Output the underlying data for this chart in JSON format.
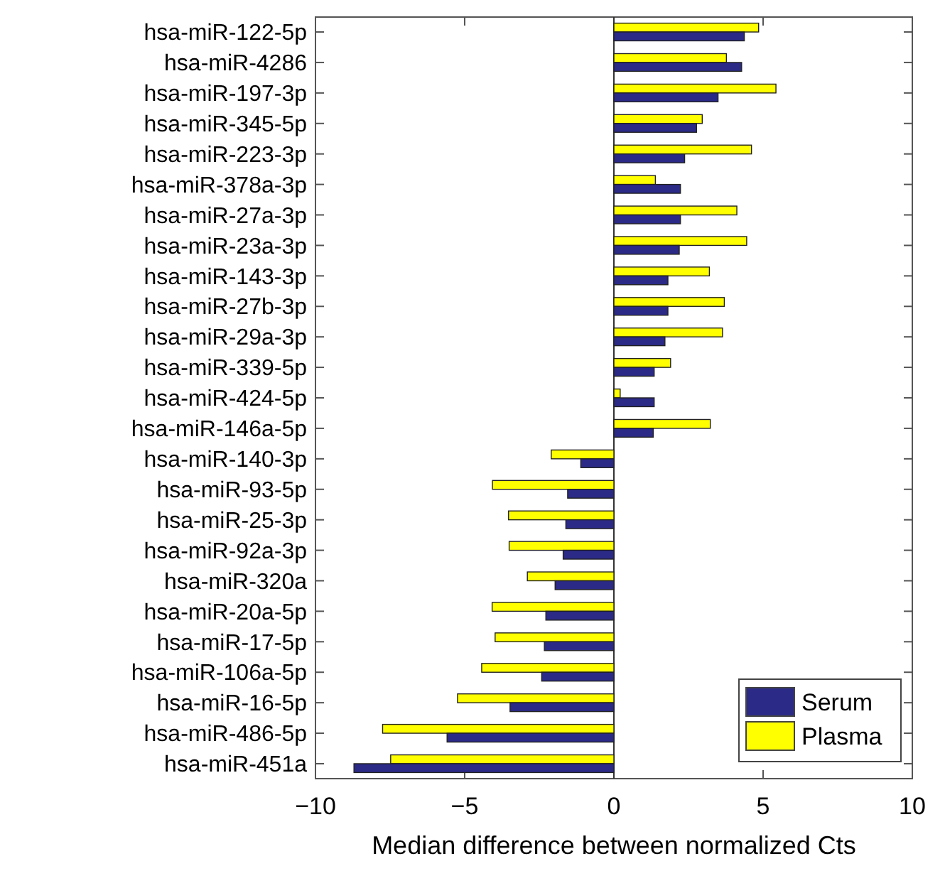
{
  "chart_data": {
    "type": "bar",
    "orientation": "horizontal",
    "xlabel": "Median difference between normalized Cts",
    "categories": [
      "hsa-miR-122-5p",
      "hsa-miR-4286",
      "hsa-miR-197-3p",
      "hsa-miR-345-5p",
      "hsa-miR-223-3p",
      "hsa-miR-378a-3p",
      "hsa-miR-27a-3p",
      "hsa-miR-23a-3p",
      "hsa-miR-143-3p",
      "hsa-miR-27b-3p",
      "hsa-miR-29a-3p",
      "hsa-miR-339-5p",
      "hsa-miR-424-5p",
      "hsa-miR-146a-5p",
      "hsa-miR-140-3p",
      "hsa-miR-93-5p",
      "hsa-miR-25-3p",
      "hsa-miR-92a-3p",
      "hsa-miR-320a",
      "hsa-miR-20a-5p",
      "hsa-miR-17-5p",
      "hsa-miR-106a-5p",
      "hsa-miR-16-5p",
      "hsa-miR-486-5p",
      "hsa-miR-451a"
    ],
    "series": [
      {
        "name": "Serum",
        "color": "#2b2a87",
        "values": [
          4.37,
          4.28,
          3.49,
          2.77,
          2.37,
          2.23,
          2.23,
          2.19,
          1.81,
          1.81,
          1.71,
          1.35,
          1.35,
          1.32,
          -1.11,
          -1.55,
          -1.61,
          -1.7,
          -1.97,
          -2.28,
          -2.33,
          -2.42,
          -3.48,
          -5.59,
          -8.71
        ]
      },
      {
        "name": "Plasma",
        "color": "#ffff00",
        "values": [
          4.85,
          3.77,
          5.43,
          2.96,
          4.61,
          1.39,
          4.12,
          4.45,
          3.2,
          3.7,
          3.64,
          1.9,
          0.21,
          3.23,
          -2.1,
          -4.07,
          -3.53,
          -3.51,
          -2.9,
          -4.08,
          -3.98,
          -4.43,
          -5.24,
          -7.75,
          -7.48
        ]
      }
    ],
    "xlim": [
      -10,
      10
    ],
    "xticks": [
      {
        "value": -10,
        "label": "−10"
      },
      {
        "value": -5,
        "label": "−5"
      },
      0,
      5,
      10
    ],
    "ref_lines": [
      {
        "axis": "x",
        "value": 0,
        "color": "#333333"
      }
    ],
    "grid": false,
    "legend": "bottom right"
  }
}
